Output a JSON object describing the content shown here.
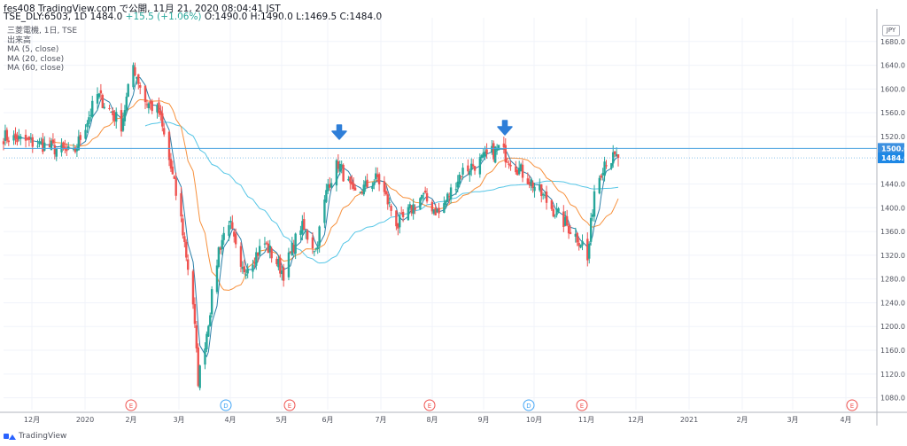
{
  "header": {
    "line1": "fes408 TradingView.com で公開, 11月 21, 2020 08:04:41 JST",
    "symbol": "TSE_DLY:6503, 1D",
    "last": "1484.0",
    "change": "+15.5 (+1.06%)",
    "ohlc": "O:1490.0 H:1490.0 L:1469.5 C:1484.0"
  },
  "legend": {
    "title": "三菱電機, 1日, TSE",
    "volume": "出来高",
    "ma5": "MA (5, close)",
    "ma20": "MA (20, close)",
    "ma60": "MA (60, close)"
  },
  "currency": "JPY",
  "brand": "TradingView",
  "colors": {
    "up": "#26a69a",
    "down": "#ef5350",
    "ma5": "#2a7fa8",
    "ma20": "#f7913d",
    "ma60": "#56c6e6",
    "resistance": "#4aa3df",
    "arrow": "#2e7ed8",
    "tag_current": "#1e88e5",
    "tag_resistance": "#3c90e0"
  },
  "chart_data": {
    "type": "candlestick",
    "title": "三菱電機, 1日, TSE",
    "y_range": [
      1060,
      1720
    ],
    "y_ticks": [
      "1680.0",
      "1640.0",
      "1600.0",
      "1560.0",
      "1520.0",
      "1440.0",
      "1400.0",
      "1360.0",
      "1320.0",
      "1280.0",
      "1240.0",
      "1200.0",
      "1160.0",
      "1120.0",
      "1080.0"
    ],
    "x_ticks": [
      "12月",
      "2020",
      "2月",
      "3月",
      "4月",
      "5月",
      "6月",
      "7月",
      "8月",
      "9月",
      "10月",
      "11月",
      "12月",
      "2021",
      "2月",
      "3月",
      "4月"
    ],
    "resistance": 1500.0,
    "current_price": 1484.0,
    "price_tags": [
      "1500.0",
      "1484.0"
    ],
    "event_markers": [
      "E",
      "D",
      "E",
      "E",
      "D",
      "E",
      "E"
    ],
    "anchors": [
      {
        "date": "2019-11-26",
        "close": 1520
      },
      {
        "date": "2019-12-20",
        "close": 1505
      },
      {
        "date": "2020-01-06",
        "close": 1490
      },
      {
        "date": "2020-01-20",
        "close": 1590
      },
      {
        "date": "2020-02-03",
        "close": 1540
      },
      {
        "date": "2020-02-10",
        "close": 1640
      },
      {
        "date": "2020-02-17",
        "close": 1580
      },
      {
        "date": "2020-02-25",
        "close": 1560
      },
      {
        "date": "2020-03-02",
        "close": 1480
      },
      {
        "date": "2020-03-09",
        "close": 1380
      },
      {
        "date": "2020-03-16",
        "close": 1240
      },
      {
        "date": "2020-03-19",
        "close": 1110
      },
      {
        "date": "2020-03-24",
        "close": 1190
      },
      {
        "date": "2020-03-31",
        "close": 1330
      },
      {
        "date": "2020-04-06",
        "close": 1380
      },
      {
        "date": "2020-04-13",
        "close": 1290
      },
      {
        "date": "2020-04-27",
        "close": 1340
      },
      {
        "date": "2020-05-08",
        "close": 1290
      },
      {
        "date": "2020-05-18",
        "close": 1370
      },
      {
        "date": "2020-05-27",
        "close": 1330
      },
      {
        "date": "2020-06-03",
        "close": 1440
      },
      {
        "date": "2020-06-09",
        "close": 1475
      },
      {
        "date": "2020-06-18",
        "close": 1420
      },
      {
        "date": "2020-07-02",
        "close": 1450
      },
      {
        "date": "2020-07-14",
        "close": 1370
      },
      {
        "date": "2020-07-28",
        "close": 1420
      },
      {
        "date": "2020-08-07",
        "close": 1390
      },
      {
        "date": "2020-08-20",
        "close": 1460
      },
      {
        "date": "2020-09-01",
        "close": 1480
      },
      {
        "date": "2020-09-11",
        "close": 1500
      },
      {
        "date": "2020-09-18",
        "close": 1480
      },
      {
        "date": "2020-10-01",
        "close": 1440
      },
      {
        "date": "2020-10-12",
        "close": 1400
      },
      {
        "date": "2020-10-21",
        "close": 1370
      },
      {
        "date": "2020-10-30",
        "close": 1340
      },
      {
        "date": "2020-11-02",
        "close": 1310
      },
      {
        "date": "2020-11-06",
        "close": 1430
      },
      {
        "date": "2020-11-12",
        "close": 1480
      },
      {
        "date": "2020-11-20",
        "close": 1484
      }
    ]
  }
}
